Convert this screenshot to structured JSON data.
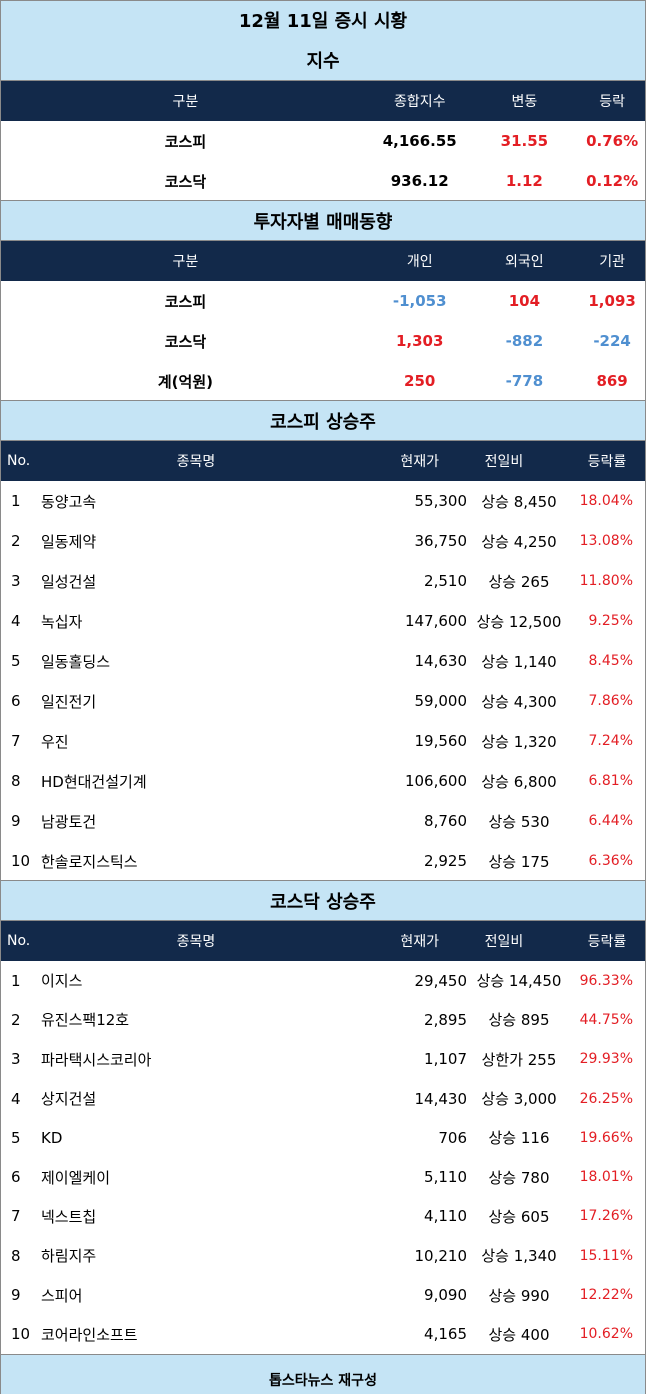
{
  "title": "12월 11일 증시 시황",
  "index": {
    "heading": "지수",
    "columns": [
      "구분",
      "종합지수",
      "변동",
      "등락"
    ],
    "rows": [
      {
        "name": "코스피",
        "value": "4,166.55",
        "change": "31.55",
        "rate": "0.76%"
      },
      {
        "name": "코스닥",
        "value": "936.12",
        "change": "1.12",
        "rate": "0.12%"
      }
    ]
  },
  "investor": {
    "heading": "투자자별 매매동향",
    "columns": [
      "구분",
      "개인",
      "외국인",
      "기관"
    ],
    "rows": [
      {
        "name": "코스피",
        "individual": "-1,053",
        "foreign": "104",
        "institution": "1,093"
      },
      {
        "name": "코스닥",
        "individual": "1,303",
        "foreign": "-882",
        "institution": "-224"
      },
      {
        "name": "계(억원)",
        "individual": "250",
        "foreign": "-778",
        "institution": "869"
      }
    ]
  },
  "kospi_gainers": {
    "heading": "코스피 상승주",
    "columns": [
      "No.",
      "종목명",
      "현재가",
      "전일비",
      "등락률"
    ],
    "rows": [
      {
        "no": "1",
        "name": "동양고속",
        "price": "55,300",
        "change": "상승 8,450",
        "rate": "18.04%"
      },
      {
        "no": "2",
        "name": "일동제약",
        "price": "36,750",
        "change": "상승 4,250",
        "rate": "13.08%"
      },
      {
        "no": "3",
        "name": "일성건설",
        "price": "2,510",
        "change": "상승 265",
        "rate": "11.80%"
      },
      {
        "no": "4",
        "name": "녹십자",
        "price": "147,600",
        "change": "상승 12,500",
        "rate": "9.25%"
      },
      {
        "no": "5",
        "name": "일동홀딩스",
        "price": "14,630",
        "change": "상승 1,140",
        "rate": "8.45%"
      },
      {
        "no": "6",
        "name": "일진전기",
        "price": "59,000",
        "change": "상승 4,300",
        "rate": "7.86%"
      },
      {
        "no": "7",
        "name": "우진",
        "price": "19,560",
        "change": "상승 1,320",
        "rate": "7.24%"
      },
      {
        "no": "8",
        "name": "HD현대건설기계",
        "price": "106,600",
        "change": "상승 6,800",
        "rate": "6.81%"
      },
      {
        "no": "9",
        "name": "남광토건",
        "price": "8,760",
        "change": "상승 530",
        "rate": "6.44%"
      },
      {
        "no": "10",
        "name": "한솔로지스틱스",
        "price": "2,925",
        "change": "상승 175",
        "rate": "6.36%"
      }
    ]
  },
  "kosdaq_gainers": {
    "heading": "코스닥 상승주",
    "columns": [
      "No.",
      "종목명",
      "현재가",
      "전일비",
      "등락률"
    ],
    "rows": [
      {
        "no": "1",
        "name": "이지스",
        "price": "29,450",
        "change": "상승 14,450",
        "rate": "96.33%"
      },
      {
        "no": "2",
        "name": "유진스팩12호",
        "price": "2,895",
        "change": "상승 895",
        "rate": "44.75%"
      },
      {
        "no": "3",
        "name": "파라택시스코리아",
        "price": "1,107",
        "change": "상한가 255",
        "rate": "29.93%"
      },
      {
        "no": "4",
        "name": "상지건설",
        "price": "14,430",
        "change": "상승 3,000",
        "rate": "26.25%"
      },
      {
        "no": "5",
        "name": "KD",
        "price": "706",
        "change": "상승 116",
        "rate": "19.66%"
      },
      {
        "no": "6",
        "name": "제이엘케이",
        "price": "5,110",
        "change": "상승 780",
        "rate": "18.01%"
      },
      {
        "no": "7",
        "name": "넥스트칩",
        "price": "4,110",
        "change": "상승 605",
        "rate": "17.26%"
      },
      {
        "no": "8",
        "name": "하림지주",
        "price": "10,210",
        "change": "상승 1,340",
        "rate": "15.11%"
      },
      {
        "no": "9",
        "name": "스피어",
        "price": "9,090",
        "change": "상승 990",
        "rate": "12.22%"
      },
      {
        "no": "10",
        "name": "코어라인소프트",
        "price": "4,165",
        "change": "상승 400",
        "rate": "10.62%"
      }
    ]
  },
  "footer": "톱스타뉴스 재구성",
  "colors": {
    "header_bg": "#12294a",
    "title_bg": "#c5e4f5",
    "up": "#e31e24",
    "down": "#4f8fd0"
  }
}
